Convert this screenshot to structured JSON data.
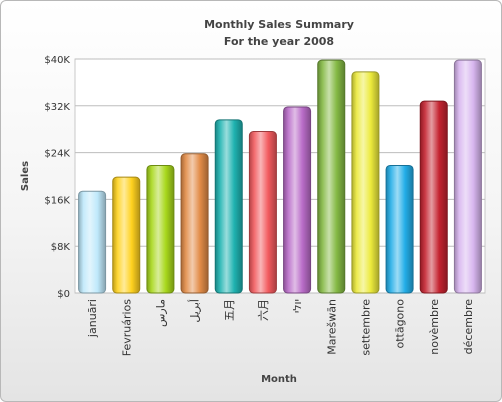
{
  "chart_data": {
    "type": "bar",
    "title": "Monthly Sales Summary",
    "subtitle": "For the year 2008",
    "xlabel": "Month",
    "ylabel": "Sales",
    "ylim": [
      0,
      40000
    ],
    "y_ticks": [
      "$0",
      "$8K",
      "$16K",
      "$24K",
      "$32K",
      "$40K"
    ],
    "y_tick_values": [
      0,
      8000,
      16000,
      24000,
      32000,
      40000
    ],
    "grid": true,
    "categories": [
      "januāri",
      "Fevruários",
      "مارس",
      "أبريل",
      "五月",
      "六月",
      "יולי",
      "Marešwān",
      "settembre",
      "ottāgono",
      "novèmbre",
      "décembre"
    ],
    "values": [
      17400,
      19800,
      21800,
      23800,
      29600,
      27600,
      31800,
      39800,
      37800,
      21800,
      32800,
      39800
    ],
    "colors": [
      "#bfe9fb",
      "#ffd21f",
      "#a8d81c",
      "#e28c48",
      "#1fb3b1",
      "#f25a5e",
      "#b96cc8",
      "#84b944",
      "#ecea3c",
      "#23aee8",
      "#c42330",
      "#d8b6ef"
    ]
  }
}
